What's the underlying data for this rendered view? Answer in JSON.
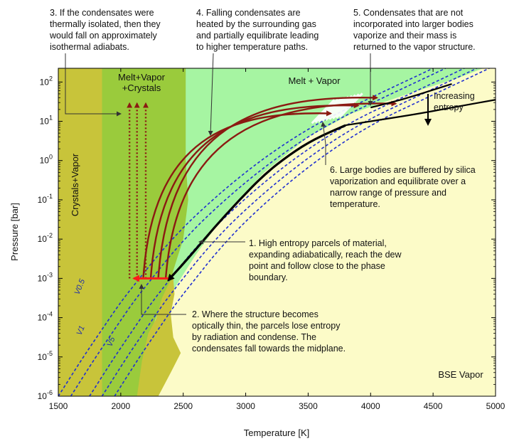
{
  "chart_data": {
    "type": "line",
    "xlabel": "Temperature [K]",
    "ylabel": "Pressure [bar]",
    "xlim": [
      1500,
      5000
    ],
    "ylim_log10": [
      -6,
      2.35
    ],
    "y_scale": "log",
    "x_ticks": [
      "1500",
      "2000",
      "2500",
      "3000",
      "3500",
      "4000",
      "4500",
      "5000"
    ],
    "y_ticks": [
      {
        "base": "10",
        "exp": "2"
      },
      {
        "base": "10",
        "exp": "1"
      },
      {
        "base": "10",
        "exp": "0"
      },
      {
        "base": "10",
        "exp": "-1"
      },
      {
        "base": "10",
        "exp": "-2"
      },
      {
        "base": "10",
        "exp": "-3"
      },
      {
        "base": "10",
        "exp": "-4"
      },
      {
        "base": "10",
        "exp": "-5"
      },
      {
        "base": "10",
        "exp": "-6"
      }
    ],
    "regions": {
      "crystals_vapor": "Crystals+Vapor",
      "melt_vapor_crystals": "Melt+Vapor\n+Crystals",
      "melt_vapor": "Melt + Vapor",
      "bse_vapor": "BSE Vapor"
    },
    "colors": {
      "crystals_vapor": "#c8c43a",
      "melt_vapor_crystals": "#9acb3c",
      "melt_vapor": "#a6f5a2",
      "bse_vapor": "#fcfbc8",
      "adiabats": "#1f2fd0",
      "condensate_paths": "#8b1a12",
      "trajectory": "#000000",
      "red_arrow": "#ff1a1a"
    },
    "adiabat_labels": [
      "V0.5",
      "V1",
      "V5"
    ],
    "phase_boundary": [
      [
        2150,
        -6
      ],
      [
        2200,
        -5.3
      ],
      [
        2260,
        -4.6
      ],
      [
        2320,
        -4
      ],
      [
        2420,
        -3.3
      ],
      [
        2600,
        -2.4
      ],
      [
        2850,
        -1.3
      ],
      [
        3150,
        -0.3
      ],
      [
        3500,
        0.6
      ],
      [
        3850,
        1.2
      ],
      [
        4300,
        1.7
      ],
      [
        4700,
        2.1
      ],
      [
        4900,
        2.35
      ]
    ],
    "trajectory_curve": [
      [
        2380,
        -3.05
      ],
      [
        2550,
        -2.45
      ],
      [
        2750,
        -1.7
      ],
      [
        2950,
        -1.0
      ],
      [
        3150,
        -0.35
      ],
      [
        3350,
        0.15
      ],
      [
        3550,
        0.55
      ],
      [
        3800,
        0.9
      ]
    ],
    "increasing_entropy_curve": [
      [
        3800,
        0.9
      ],
      [
        4000,
        1.0
      ],
      [
        4400,
        1.2
      ],
      [
        4700,
        1.38
      ],
      [
        5000,
        1.55
      ]
    ],
    "upper_trajectory": [
      [
        4000,
        1.35
      ],
      [
        4250,
        1.55
      ],
      [
        4500,
        1.8
      ],
      [
        4650,
        1.95
      ]
    ],
    "adiabats": [
      {
        "x": [
          1500,
          1700,
          1850,
          2000,
          2150,
          2300,
          2500,
          2700,
          2900,
          3100,
          3300,
          3500,
          3700,
          3900,
          4100,
          4300,
          4500
        ]
      },
      {
        "x": [
          1600,
          1800,
          1950,
          2100,
          2250,
          2400,
          2600,
          2800,
          3000,
          3200,
          3400,
          3600,
          3800,
          4000,
          4200,
          4400,
          4600
        ]
      },
      {
        "x": [
          1750,
          1950,
          2100,
          2250,
          2400,
          2550,
          2750,
          2950,
          3150,
          3350,
          3550,
          3750,
          3950,
          4150,
          4350,
          4550,
          4750
        ]
      },
      {
        "x": [
          1850,
          2050,
          2200,
          2350,
          2500,
          2650,
          2850,
          3050,
          3250,
          3450,
          3650,
          3850,
          4050,
          4250,
          4450,
          4650,
          4850
        ]
      },
      {
        "x": [
          1950,
          2150,
          2300,
          2450,
          2600,
          2750,
          2950,
          3150,
          3350,
          3550,
          3750,
          3950,
          4150,
          4350,
          4550,
          4750,
          4950
        ]
      }
    ],
    "adiabat_y_log10": [
      -6,
      -5,
      -4.3,
      -3.6,
      -3,
      -2.4,
      -1.7,
      -1.1,
      -0.55,
      -0.05,
      0.4,
      0.8,
      1.15,
      1.45,
      1.75,
      2.05,
      2.35
    ],
    "condensate_arcs": [
      {
        "start_x": 2180,
        "end_x": 3680,
        "end_y": 1.2
      },
      {
        "start_x": 2240,
        "end_x": 3900,
        "end_y": 1.4
      },
      {
        "start_x": 2300,
        "end_x": 4050,
        "end_y": 1.6
      },
      {
        "start_x": 2360,
        "end_x": 4200,
        "end_y": 1.45
      }
    ],
    "isothermal_x": [
      2070,
      2130,
      2200
    ],
    "red_arrow": {
      "x_from": 2380,
      "x_to": 2070,
      "y": -3
    },
    "annotations": {
      "a3": [
        "3. If the condensates were",
        "thermally isolated, then they",
        "would fall on approximately",
        "isothermal adiabats."
      ],
      "a4": [
        "4. Falling condensates are",
        "heated by the surrounding gas",
        "and partially equilibrate leading",
        "to higher temperature paths."
      ],
      "a5": [
        "5. Condensates that are not",
        "incorporated into larger bodies",
        "vaporize and their mass is",
        "returned to the vapor structure."
      ],
      "a6": [
        "6. Large bodies are buffered by silica",
        "vaporization and equilibrate over a",
        "narrow range of pressure and",
        "temperature."
      ],
      "a1": [
        "1. High entropy parcels of material,",
        "expanding adiabatically, reach the dew",
        "point and follow close to the phase",
        "boundary."
      ],
      "a2": [
        "2. Where the structure becomes",
        "optically thin, the parcels lose entropy",
        "by radiation and condense. The",
        "condensates fall towards the midplane."
      ],
      "entropy": [
        "Increasing",
        "entropy"
      ]
    }
  }
}
